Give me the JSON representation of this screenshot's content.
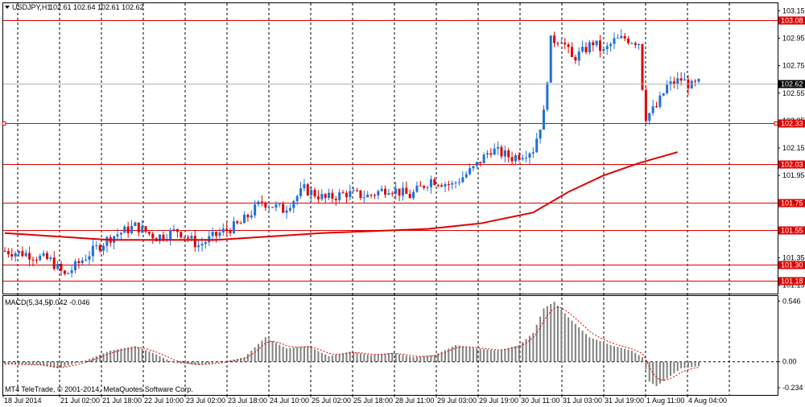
{
  "header": {
    "symbol": "USDJPY,H1",
    "ohlc": "102.61 102.64 102.61 102.62"
  },
  "macd_header": {
    "label": "MACD(5,34,5)",
    "values": "-0.042 -0.046"
  },
  "footer": "MT4 TeleTrade, © 2001-2014, MetaQuotes Software Corp.",
  "colors": {
    "background": "#ffffff",
    "bull": "#1e6fd9",
    "bear": "#e00000",
    "level_line": "#e00000",
    "ma": "#e00000",
    "histogram": "#808080",
    "signal": "#e00000",
    "current_tag": "#000000"
  },
  "chart_data": [
    {
      "type": "candlestick",
      "symbol": "USDJPY",
      "timeframe": "H1",
      "price_axis": [
        "103.15",
        "102.95",
        "102.75",
        "102.55",
        "102.35",
        "102.15",
        "101.95",
        "101.75",
        "101.55",
        "101.35",
        "101.15"
      ],
      "ylim": [
        101.13,
        103.17
      ],
      "current_price": "102.62",
      "horizontal_levels": [
        "103.08",
        "102.33",
        "102.03",
        "101.75",
        "101.55",
        "101.30",
        "101.18"
      ],
      "time_axis": [
        "18 Jul 2014",
        "21 Jul 02:00",
        "21 Jul 18:00",
        "22 Jul 10:00",
        "23 Jul 02:00",
        "23 Jul 18:00",
        "24 Jul 10:00",
        "25 Jul 02:00",
        "25 Jul 18:00",
        "28 Jul 11:00",
        "29 Jul 03:00",
        "29 Jul 19:00",
        "30 Jul 11:00",
        "31 Jul 03:00",
        "31 Jul 19:00",
        "1 Aug 11:00",
        "4 Aug 04:00"
      ],
      "close_path": [
        [
          0,
          101.4
        ],
        [
          6,
          101.38
        ],
        [
          13,
          101.33
        ],
        [
          17,
          101.22
        ],
        [
          24,
          101.38
        ],
        [
          30,
          101.5
        ],
        [
          37,
          101.58
        ],
        [
          43,
          101.5
        ],
        [
          49,
          101.55
        ],
        [
          55,
          101.44
        ],
        [
          61,
          101.53
        ],
        [
          67,
          101.6
        ],
        [
          73,
          101.76
        ],
        [
          79,
          101.7
        ],
        [
          85,
          101.85
        ],
        [
          91,
          101.78
        ],
        [
          97,
          101.82
        ],
        [
          103,
          101.8
        ],
        [
          109,
          101.86
        ],
        [
          115,
          101.8
        ],
        [
          121,
          101.92
        ],
        [
          127,
          101.88
        ],
        [
          133,
          102.0
        ],
        [
          138,
          102.14
        ],
        [
          144,
          102.08
        ],
        [
          150,
          102.14
        ],
        [
          153,
          102.4
        ],
        [
          155,
          102.93
        ],
        [
          158,
          102.95
        ],
        [
          161,
          102.8
        ],
        [
          164,
          102.85
        ],
        [
          167,
          102.92
        ],
        [
          170,
          102.85
        ],
        [
          173,
          102.93
        ],
        [
          176,
          102.95
        ],
        [
          180,
          102.92
        ],
        [
          181,
          102.6
        ],
        [
          182,
          102.38
        ],
        [
          185,
          102.45
        ],
        [
          188,
          102.6
        ],
        [
          192,
          102.65
        ],
        [
          195,
          102.6
        ],
        [
          197,
          102.62
        ]
      ],
      "moving_average": [
        [
          0,
          101.53
        ],
        [
          30,
          101.48
        ],
        [
          60,
          101.48
        ],
        [
          90,
          101.53
        ],
        [
          120,
          101.56
        ],
        [
          135,
          101.6
        ],
        [
          150,
          101.68
        ],
        [
          160,
          101.83
        ],
        [
          170,
          101.95
        ],
        [
          180,
          102.04
        ],
        [
          191,
          102.12
        ]
      ],
      "series": [
        {
          "name": "MACD(5,34,5)",
          "values": [
            -0.02,
            -0.06,
            0.14,
            -0.03,
            0.05,
            0.08,
            0.06,
            0.07,
            0.07,
            -0.01,
            0.15,
            0.54,
            0.38,
            0.22,
            0.1,
            -0.22,
            -0.04
          ]
        }
      ]
    },
    {
      "type": "histogram",
      "title": "MACD(5,34,5)",
      "current_values": [
        "-0.042",
        "-0.046"
      ],
      "axis_labels": [
        "0.546",
        "0.00",
        "-0.234"
      ],
      "ylim": [
        -0.27,
        0.57
      ],
      "histogram": [
        [
          0,
          -0.02
        ],
        [
          10,
          -0.03
        ],
        [
          15,
          -0.06
        ],
        [
          22,
          0.0
        ],
        [
          30,
          0.1
        ],
        [
          37,
          0.14
        ],
        [
          42,
          0.08
        ],
        [
          48,
          -0.01
        ],
        [
          55,
          -0.03
        ],
        [
          62,
          0.0
        ],
        [
          68,
          0.04
        ],
        [
          74,
          0.22
        ],
        [
          80,
          0.12
        ],
        [
          86,
          0.14
        ],
        [
          92,
          0.05
        ],
        [
          98,
          0.09
        ],
        [
          104,
          0.06
        ],
        [
          110,
          0.08
        ],
        [
          116,
          0.04
        ],
        [
          122,
          0.06
        ],
        [
          128,
          0.15
        ],
        [
          134,
          0.12
        ],
        [
          140,
          0.1
        ],
        [
          146,
          0.15
        ],
        [
          150,
          0.26
        ],
        [
          153,
          0.48
        ],
        [
          156,
          0.54
        ],
        [
          160,
          0.4
        ],
        [
          166,
          0.22
        ],
        [
          172,
          0.15
        ],
        [
          178,
          0.1
        ],
        [
          181,
          0.04
        ],
        [
          183,
          -0.18
        ],
        [
          185,
          -0.22
        ],
        [
          188,
          -0.15
        ],
        [
          192,
          -0.06
        ],
        [
          197,
          -0.04
        ]
      ]
    }
  ]
}
